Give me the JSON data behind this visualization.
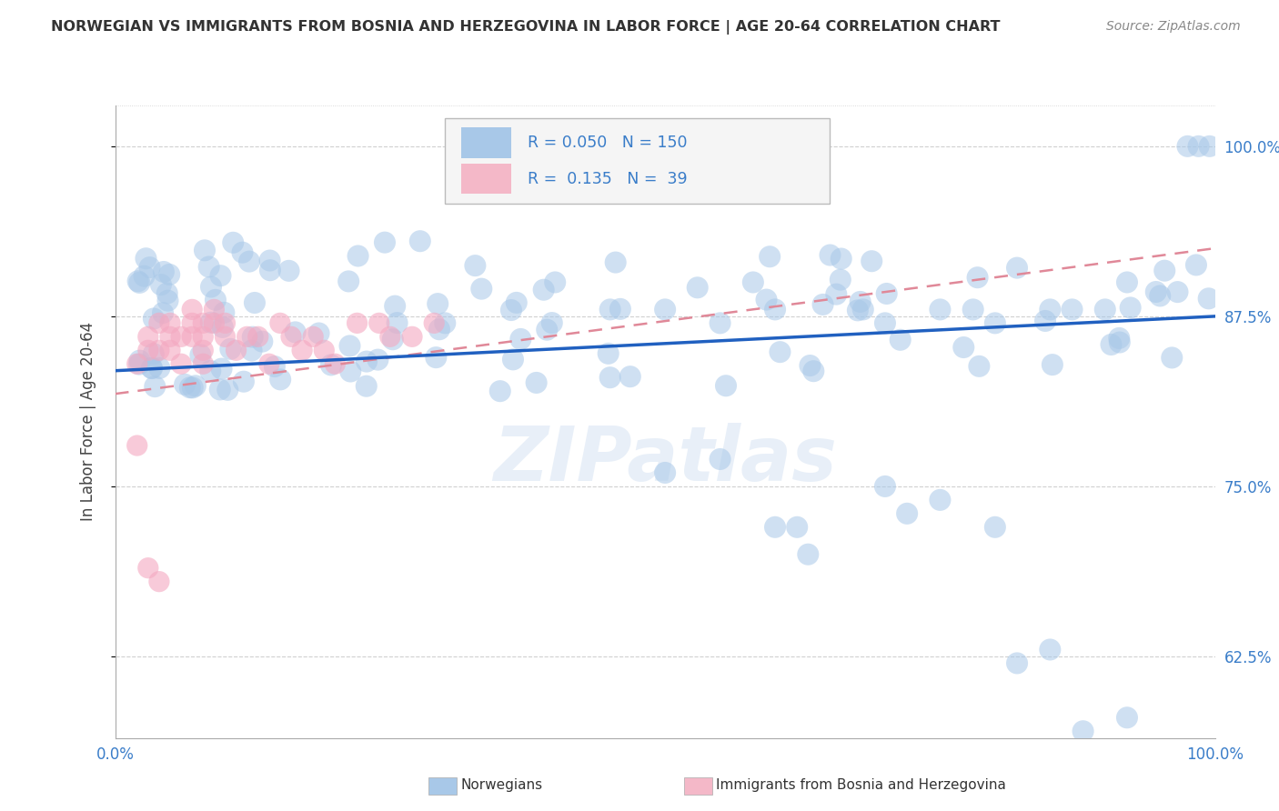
{
  "title": "NORWEGIAN VS IMMIGRANTS FROM BOSNIA AND HERZEGOVINA IN LABOR FORCE | AGE 20-64 CORRELATION CHART",
  "source": "Source: ZipAtlas.com",
  "ylabel": "In Labor Force | Age 20-64",
  "xlim": [
    0.0,
    1.0
  ],
  "ylim": [
    0.565,
    1.03
  ],
  "yticks": [
    0.625,
    0.75,
    0.875,
    1.0
  ],
  "ytick_labels": [
    "62.5%",
    "75.0%",
    "87.5%",
    "100.0%"
  ],
  "xtick_labels": [
    "0.0%",
    "100.0%"
  ],
  "norwegian_R": 0.05,
  "norwegian_N": 150,
  "bosnian_R": 0.135,
  "bosnian_N": 39,
  "norwegian_color": "#a8c8e8",
  "bosnian_color": "#f4a8c0",
  "norwegian_line_color": "#2060c0",
  "bosnian_line_color": "#e08898",
  "background_color": "#ffffff",
  "grid_color": "#d0d0d0",
  "title_color": "#333333",
  "watermark": "ZIPatlas",
  "legend_box_color_norwegian": "#a8c8e8",
  "legend_box_color_bosnian": "#f4b8c8",
  "nor_line_start_y": 0.835,
  "nor_line_end_y": 0.875,
  "bos_line_start_y": 0.818,
  "bos_line_end_y": 0.925
}
